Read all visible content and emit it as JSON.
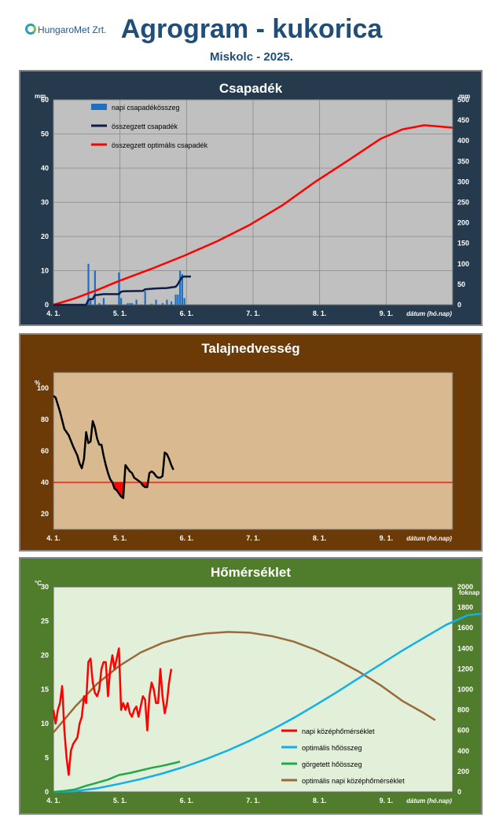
{
  "header": {
    "logo_text": "HungaroMet Zrt.",
    "title": "Agrogram - kukorica",
    "subtitle": "Miskolc  - 2025."
  },
  "chart_data": [
    {
      "type": "bar",
      "title": "Csapadék",
      "ylabel": "mm",
      "y2label": "mm",
      "xlabel": "dátum (hó.nap)",
      "xticks": [
        "4. 1.",
        "5. 1.",
        "6. 1.",
        "7. 1.",
        "8. 1.",
        "9. 1."
      ],
      "ylim": [
        0,
        60
      ],
      "y2lim": [
        0,
        500
      ],
      "yticks": [
        0,
        10,
        20,
        30,
        40,
        50,
        60
      ],
      "y2ticks": [
        0,
        50,
        100,
        150,
        200,
        250,
        300,
        350,
        400,
        450,
        500
      ],
      "grid": true,
      "legend": "top-left",
      "colors": {
        "bg": "#c0c0c0",
        "bar": "#1f6fc0",
        "cum": "#0b1f4a",
        "opt": "#ff0000"
      },
      "series": [
        {
          "name": "napi csapadékösszeg",
          "axis": "left",
          "kind": "bar",
          "points": [
            [
              16,
              12
            ],
            [
              17,
              2
            ],
            [
              19,
              10
            ],
            [
              21,
              0.5
            ],
            [
              23,
              2
            ],
            [
              30,
              9.5
            ],
            [
              31,
              2
            ],
            [
              34,
              0.5
            ],
            [
              35,
              0.5
            ],
            [
              36,
              0.5
            ],
            [
              38,
              1.5
            ],
            [
              42,
              4
            ],
            [
              45,
              0.3
            ],
            [
              47,
              1.5
            ],
            [
              50,
              0.5
            ],
            [
              52,
              1.5
            ],
            [
              54,
              1
            ],
            [
              56,
              3
            ],
            [
              57,
              3
            ],
            [
              58,
              10
            ],
            [
              59,
              9
            ],
            [
              60,
              2
            ]
          ]
        },
        {
          "name": "összegzett csapadék",
          "axis": "right",
          "kind": "line",
          "points": [
            [
              0,
              0
            ],
            [
              15,
              0
            ],
            [
              16,
              12
            ],
            [
              17,
              14
            ],
            [
              18,
              14
            ],
            [
              19,
              24
            ],
            [
              20,
              24
            ],
            [
              23,
              26
            ],
            [
              30,
              26
            ],
            [
              31,
              32
            ],
            [
              32,
              33
            ],
            [
              41,
              34
            ],
            [
              42,
              38
            ],
            [
              47,
              40
            ],
            [
              52,
              41
            ],
            [
              56,
              44
            ],
            [
              57,
              50
            ],
            [
              58,
              60
            ],
            [
              59,
              68
            ],
            [
              60,
              69
            ],
            [
              63,
              69
            ]
          ]
        },
        {
          "name": "összegzett optimális csapadék",
          "axis": "right",
          "kind": "line",
          "points": [
            [
              0,
              0
            ],
            [
              10,
              16
            ],
            [
              20,
              36
            ],
            [
              30,
              58
            ],
            [
              45,
              88
            ],
            [
              60,
              120
            ],
            [
              75,
              155
            ],
            [
              90,
              195
            ],
            [
              105,
              243
            ],
            [
              120,
              300
            ],
            [
              135,
              352
            ],
            [
              150,
              405
            ],
            [
              160,
              428
            ],
            [
              170,
              438
            ],
            [
              183,
              432
            ]
          ]
        }
      ]
    },
    {
      "type": "line",
      "title": "Talajnedvesség",
      "ylabel": "%",
      "xlabel": "dátum (hó.nap)",
      "xticks": [
        "4. 1.",
        "5. 1.",
        "6. 1.",
        "7. 1.",
        "8. 1.",
        "9. 1."
      ],
      "ylim": [
        10,
        110
      ],
      "yticks": [
        20,
        40,
        60,
        80,
        100
      ],
      "grid": false,
      "threshold": 40,
      "colors": {
        "bg": "#d9b98f",
        "line": "#000000",
        "threshold": "#ff0000",
        "deficit": "#ff0000"
      },
      "series": [
        {
          "name": "talajnedvesség",
          "points": [
            [
              0,
              95
            ],
            [
              1,
              94
            ],
            [
              3,
              85
            ],
            [
              5,
              74
            ],
            [
              7,
              70
            ],
            [
              9,
              63
            ],
            [
              11,
              57
            ],
            [
              12,
              52
            ],
            [
              13,
              49
            ],
            [
              14,
              55
            ],
            [
              15,
              72
            ],
            [
              16,
              65
            ],
            [
              17,
              66
            ],
            [
              18,
              79
            ],
            [
              19,
              75
            ],
            [
              20,
              68
            ],
            [
              21,
              64
            ],
            [
              22,
              64
            ],
            [
              23,
              57
            ],
            [
              24,
              51
            ],
            [
              25,
              46
            ],
            [
              26,
              42
            ],
            [
              27,
              40
            ],
            [
              28,
              36
            ],
            [
              29,
              35
            ],
            [
              30,
              33
            ],
            [
              31,
              31
            ],
            [
              32,
              30
            ],
            [
              33,
              51
            ],
            [
              34,
              49
            ],
            [
              35,
              47
            ],
            [
              36,
              46
            ],
            [
              37,
              43
            ],
            [
              38,
              42
            ],
            [
              39,
              41
            ],
            [
              40,
              40
            ],
            [
              41,
              38
            ],
            [
              42,
              37
            ],
            [
              43,
              37
            ],
            [
              44,
              46
            ],
            [
              45,
              47
            ],
            [
              46,
              46
            ],
            [
              47,
              44
            ],
            [
              48,
              43
            ],
            [
              49,
              43
            ],
            [
              50,
              44
            ],
            [
              51,
              59
            ],
            [
              52,
              58
            ],
            [
              53,
              55
            ],
            [
              54,
              51
            ],
            [
              55,
              48
            ]
          ]
        }
      ]
    },
    {
      "type": "line",
      "title": "Hőmérséklet",
      "ylabel": "°C",
      "y2label": "foknap",
      "xlabel": "dátum (hó.nap)",
      "xticks": [
        "4. 1.",
        "5. 1.",
        "6. 1.",
        "7. 1.",
        "8. 1.",
        "9. 1."
      ],
      "ylim": [
        0,
        30
      ],
      "y2lim": [
        0,
        2000
      ],
      "yticks": [
        0,
        5,
        10,
        15,
        20,
        25,
        30
      ],
      "y2ticks": [
        0,
        200,
        400,
        600,
        800,
        1000,
        1200,
        1400,
        1600,
        1800,
        2000
      ],
      "grid": false,
      "legend": "bottom-right",
      "colors": {
        "bg": "#e2efd9"
      },
      "series": [
        {
          "name": "napi középhőmérséklet",
          "axis": "left",
          "color": "#ff0000",
          "points": [
            [
              0,
              12
            ],
            [
              1,
              10
            ],
            [
              2,
              12
            ],
            [
              3,
              13
            ],
            [
              4,
              15.5
            ],
            [
              5,
              9
            ],
            [
              6,
              5
            ],
            [
              7,
              2.5
            ],
            [
              8,
              6
            ],
            [
              9,
              7
            ],
            [
              10,
              7.5
            ],
            [
              11,
              8
            ],
            [
              12,
              10
            ],
            [
              13,
              11
            ],
            [
              14,
              14
            ],
            [
              15,
              13
            ],
            [
              16,
              19
            ],
            [
              17,
              19.5
            ],
            [
              18,
              16
            ],
            [
              19,
              14.5
            ],
            [
              20,
              14
            ],
            [
              21,
              15
            ],
            [
              22,
              18
            ],
            [
              23,
              19
            ],
            [
              24,
              19
            ],
            [
              25,
              14
            ],
            [
              26,
              18
            ],
            [
              27,
              20
            ],
            [
              28,
              18
            ],
            [
              29,
              19.5
            ],
            [
              30,
              21
            ],
            [
              31,
              12
            ],
            [
              32,
              13
            ],
            [
              33,
              12
            ],
            [
              34,
              13
            ],
            [
              35,
              11.5
            ],
            [
              36,
              11
            ],
            [
              37,
              12
            ],
            [
              38,
              12.5
            ],
            [
              39,
              11
            ],
            [
              40,
              12.5
            ],
            [
              41,
              14
            ],
            [
              42,
              13.5
            ],
            [
              43,
              9
            ],
            [
              44,
              14
            ],
            [
              45,
              16
            ],
            [
              46,
              15
            ],
            [
              47,
              13
            ],
            [
              48,
              13
            ],
            [
              49,
              18
            ],
            [
              50,
              14
            ],
            [
              51,
              11.5
            ],
            [
              52,
              13
            ],
            [
              53,
              16
            ],
            [
              54,
              18
            ]
          ]
        },
        {
          "name": "optimális hőösszeg",
          "axis": "right",
          "color": "#10b0e8",
          "points": [
            [
              0,
              0
            ],
            [
              10,
              8
            ],
            [
              20,
              35
            ],
            [
              30,
              78
            ],
            [
              40,
              125
            ],
            [
              50,
              180
            ],
            [
              60,
              245
            ],
            [
              70,
              320
            ],
            [
              80,
              405
            ],
            [
              90,
              500
            ],
            [
              100,
              605
            ],
            [
              110,
              720
            ],
            [
              120,
              845
            ],
            [
              130,
              975
            ],
            [
              140,
              1110
            ],
            [
              150,
              1245
            ],
            [
              160,
              1380
            ],
            [
              170,
              1505
            ],
            [
              180,
              1630
            ],
            [
              190,
              1725
            ],
            [
              200,
              1745
            ]
          ]
        },
        {
          "name": "görgetett hőösszeg",
          "axis": "right",
          "color": "#22a84a",
          "points": [
            [
              0,
              0
            ],
            [
              5,
              10
            ],
            [
              10,
              25
            ],
            [
              15,
              60
            ],
            [
              20,
              90
            ],
            [
              25,
              120
            ],
            [
              30,
              165
            ],
            [
              35,
              185
            ],
            [
              40,
              210
            ],
            [
              45,
              235
            ],
            [
              50,
              255
            ],
            [
              55,
              280
            ],
            [
              58,
              295
            ]
          ]
        },
        {
          "name": "optimális napi középhőmérséklet",
          "axis": "left",
          "color": "#9a6b3a",
          "points": [
            [
              0,
              8.7
            ],
            [
              10,
              12.5
            ],
            [
              20,
              15.8
            ],
            [
              30,
              18.4
            ],
            [
              40,
              20.4
            ],
            [
              50,
              21.8
            ],
            [
              60,
              22.7
            ],
            [
              70,
              23.2
            ],
            [
              80,
              23.4
            ],
            [
              90,
              23.3
            ],
            [
              100,
              22.8
            ],
            [
              110,
              22
            ],
            [
              120,
              20.8
            ],
            [
              130,
              19.3
            ],
            [
              140,
              17.6
            ],
            [
              150,
              15.6
            ],
            [
              160,
              13.3
            ],
            [
              170,
              11.5
            ],
            [
              175,
              10.5
            ]
          ]
        }
      ]
    }
  ]
}
